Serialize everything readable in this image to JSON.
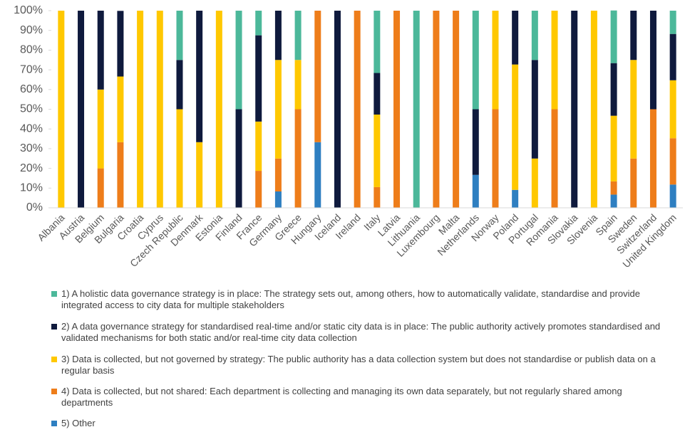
{
  "chart_data": {
    "type": "stacked_bar",
    "categories": [
      "Albania",
      "Austria",
      "Belgium",
      "Bulgaria",
      "Croatia",
      "Cyprus",
      "Czech Republic",
      "Denmark",
      "Estonia",
      "Finland",
      "France",
      "Germany",
      "Greece",
      "Hungary",
      "Iceland",
      "Ireland",
      "Italy",
      "Latvia",
      "Lithuania",
      "Luxembourg",
      "Malta",
      "Netherlands",
      "Norway",
      "Poland",
      "Portugal",
      "Romania",
      "Slovakia",
      "Slovenia",
      "Spain",
      "Sweden",
      "Switzerland",
      "United Kingdom"
    ],
    "series": [
      {
        "name": "1) A holistic data governance strategy is in place: The strategy sets out, among others, how to automatically validate, standardise and provide integrated access to city data for multiple stakeholders",
        "color": "#4cb89a",
        "values": [
          0,
          0,
          0,
          0,
          0,
          0,
          25,
          0,
          0,
          50,
          12.5,
          0,
          25,
          0,
          0,
          0,
          31.6,
          0,
          100,
          0,
          0,
          50,
          0,
          0,
          25,
          0,
          0,
          0,
          26.7,
          0,
          0,
          11.8
        ]
      },
      {
        "name": "2) A data governance strategy for standardised real-time and/or static city data is in place: The public authority actively promotes standardised and validated mechanisms for both static and/or real-time city data collection",
        "color": "#0f1a3d",
        "values": [
          0,
          100,
          40,
          33.3,
          0,
          0,
          25,
          66.7,
          0,
          50,
          43.75,
          25,
          0,
          0,
          100,
          0,
          21.1,
          0,
          0,
          0,
          0,
          33.3,
          0,
          27.3,
          50,
          0,
          100,
          0,
          26.7,
          25,
          50,
          23.5
        ]
      },
      {
        "name": "3) Data is collected, but not governed by strategy: The public authority has a data collection system but does not standardise or publish data on a regular basis",
        "color": "#ffc800",
        "values": [
          100,
          0,
          40,
          33.3,
          100,
          100,
          50,
          33.3,
          100,
          0,
          25,
          50,
          25,
          0,
          0,
          0,
          36.8,
          0,
          0,
          0,
          0,
          0,
          50,
          63.6,
          25,
          50,
          0,
          100,
          33.3,
          50,
          0,
          29.4
        ]
      },
      {
        "name": "4) Data is collected, but not shared: Each department is collecting and managing its own data separately, but not regularly shared among departments",
        "color": "#ee7d1a",
        "values": [
          0,
          0,
          20,
          33.3,
          0,
          0,
          0,
          0,
          0,
          0,
          18.75,
          16.7,
          50,
          66.7,
          0,
          100,
          10.5,
          100,
          0,
          100,
          100,
          0,
          50,
          0,
          0,
          50,
          0,
          0,
          6.7,
          25,
          50,
          23.5
        ]
      },
      {
        "name": "5) Other",
        "color": "#2e7fc1",
        "values": [
          0,
          0,
          0,
          0,
          0,
          0,
          0,
          0,
          0,
          0,
          0,
          8.3,
          0,
          33.3,
          0,
          0,
          0,
          0,
          0,
          0,
          0,
          16.7,
          0,
          9.1,
          0,
          0,
          0,
          0,
          6.7,
          0,
          0,
          11.8
        ]
      }
    ],
    "ylim": [
      0,
      100
    ],
    "yticks": [
      {
        "value": 0,
        "label": "0%"
      },
      {
        "value": 10,
        "label": "10%"
      },
      {
        "value": 20,
        "label": "20%"
      },
      {
        "value": 30,
        "label": "30%"
      },
      {
        "value": 40,
        "label": "40%"
      },
      {
        "value": 50,
        "label": "50%"
      },
      {
        "value": 60,
        "label": "60%"
      },
      {
        "value": 70,
        "label": "70%"
      },
      {
        "value": 80,
        "label": "80%"
      },
      {
        "value": 90,
        "label": "90%"
      },
      {
        "value": 100,
        "label": "100%"
      }
    ],
    "grid": false,
    "legend": "bottom"
  }
}
